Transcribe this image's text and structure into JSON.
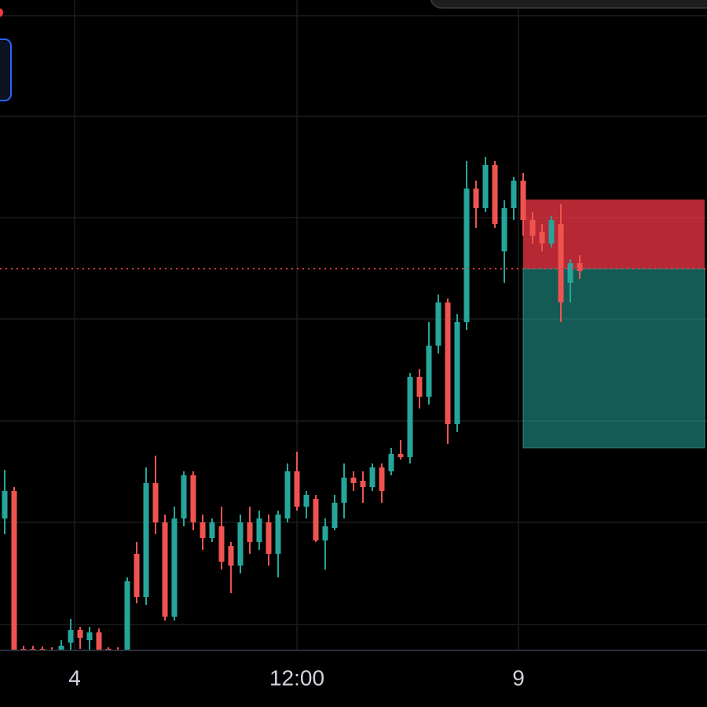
{
  "chart_data": {
    "type": "candlestick",
    "up_color": "#26a69a",
    "down_color": "#ef5350",
    "xlim": [
      -0.5,
      74.5
    ],
    "ylim": [
      0,
      828
    ],
    "xticks": [
      {
        "value": 7.42,
        "label": "4"
      },
      {
        "value": 31,
        "label": "12:00"
      },
      {
        "value": 54.5,
        "label": "9"
      }
    ],
    "grid_y": [
      808,
      680,
      551,
      422,
      292,
      163,
      33
    ],
    "open": [
      168,
      203,
      2,
      2,
      2,
      1,
      0,
      10,
      26,
      13,
      23,
      2,
      1,
      0,
      123,
      68,
      213,
      163,
      43,
      168,
      223,
      163,
      143,
      158,
      133,
      108,
      163,
      138,
      163,
      123,
      168,
      228,
      183,
      193,
      140,
      156,
      188,
      220,
      216,
      208,
      233,
      228,
      250,
      246,
      348,
      323,
      388,
      443,
      288,
      418,
      588,
      563,
      618,
      508,
      563,
      598,
      548,
      533,
      518,
      543,
      468,
      493
    ],
    "close": [
      203,
      0,
      0,
      0,
      0,
      0,
      6,
      26,
      16,
      23,
      0,
      0,
      0,
      88,
      68,
      213,
      163,
      43,
      168,
      223,
      163,
      143,
      163,
      113,
      108,
      163,
      138,
      168,
      123,
      173,
      228,
      183,
      198,
      140,
      158,
      188,
      220,
      213,
      208,
      233,
      203,
      250,
      246,
      348,
      323,
      388,
      443,
      288,
      418,
      588,
      563,
      618,
      543,
      563,
      598,
      548,
      528,
      518,
      548,
      443,
      493,
      483
    ],
    "high": [
      230,
      208,
      6,
      6,
      5,
      4,
      13,
      40,
      30,
      30,
      28,
      4,
      4,
      93,
      138,
      233,
      248,
      173,
      183,
      228,
      228,
      173,
      168,
      183,
      138,
      173,
      183,
      178,
      173,
      178,
      238,
      253,
      203,
      198,
      168,
      198,
      238,
      228,
      228,
      238,
      238,
      258,
      268,
      353,
      358,
      418,
      453,
      448,
      428,
      623,
      598,
      628,
      623,
      573,
      603,
      608,
      558,
      543,
      553,
      568,
      498,
      503
    ],
    "low": [
      148,
      0,
      0,
      0,
      0,
      0,
      0,
      0,
      2,
      0,
      0,
      0,
      0,
      0,
      60,
      58,
      148,
      38,
      38,
      158,
      153,
      128,
      138,
      103,
      73,
      98,
      123,
      128,
      108,
      93,
      163,
      178,
      168,
      138,
      103,
      153,
      168,
      203,
      188,
      203,
      188,
      223,
      243,
      238,
      308,
      313,
      378,
      263,
      278,
      408,
      538,
      558,
      538,
      468,
      548,
      528,
      518,
      508,
      513,
      418,
      443,
      473
    ],
    "price_line": 486,
    "price_line_color": "#f23645",
    "position": {
      "start_index": 55,
      "stop": 574,
      "entry": 486,
      "target": 258,
      "stop_color": "rgba(242,54,69,0.75)",
      "target_color": "rgba(38,166,154,0.55)"
    }
  }
}
